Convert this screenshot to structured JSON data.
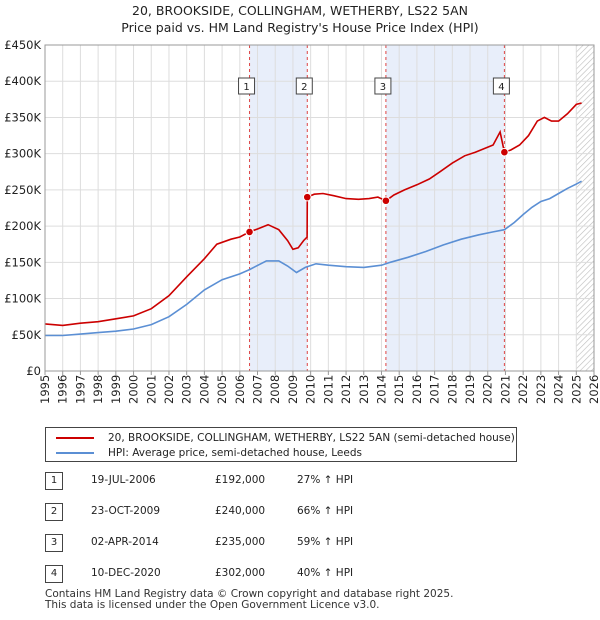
{
  "header": {
    "title": "20, BROOKSIDE, COLLINGHAM, WETHERBY, LS22 5AN",
    "subtitle": "Price paid vs. HM Land Registry's House Price Index (HPI)"
  },
  "chart_data": {
    "type": "line",
    "x_ticks": [
      "1995",
      "1996",
      "1997",
      "1998",
      "1999",
      "2000",
      "2001",
      "2002",
      "2003",
      "2004",
      "2005",
      "2006",
      "2007",
      "2008",
      "2009",
      "2010",
      "2011",
      "2012",
      "2013",
      "2014",
      "2015",
      "2016",
      "2017",
      "2018",
      "2019",
      "2020",
      "2021",
      "2022",
      "2023",
      "2024",
      "2025",
      "2026"
    ],
    "y_ticks": [
      "£0",
      "£50K",
      "£100K",
      "£150K",
      "£200K",
      "£250K",
      "£300K",
      "£350K",
      "£400K",
      "£450K"
    ],
    "xlim": [
      1995,
      2026
    ],
    "ylim": [
      0,
      450000
    ],
    "forecast_from": 2025.0,
    "shaded_ranges": [
      [
        2006.55,
        2009.81
      ],
      [
        2014.25,
        2020.94
      ]
    ],
    "series": [
      {
        "name": "20, BROOKSIDE, COLLINGHAM, WETHERBY, LS22 5AN (semi-detached house)",
        "color": "#cc0000",
        "points": [
          [
            1995.0,
            65000
          ],
          [
            1996.0,
            63000
          ],
          [
            1997.0,
            66000
          ],
          [
            1998.0,
            68000
          ],
          [
            1999.0,
            72000
          ],
          [
            2000.0,
            76000
          ],
          [
            2001.0,
            86000
          ],
          [
            2002.0,
            104000
          ],
          [
            2003.0,
            130000
          ],
          [
            2004.0,
            155000
          ],
          [
            2004.7,
            175000
          ],
          [
            2005.5,
            182000
          ],
          [
            2006.0,
            185000
          ],
          [
            2006.55,
            192000
          ],
          [
            2007.0,
            196000
          ],
          [
            2007.6,
            202000
          ],
          [
            2008.2,
            195000
          ],
          [
            2008.7,
            180000
          ],
          [
            2009.0,
            168000
          ],
          [
            2009.3,
            170000
          ],
          [
            2009.6,
            180000
          ],
          [
            2009.8,
            185000
          ],
          [
            2009.81,
            240000
          ],
          [
            2010.2,
            244000
          ],
          [
            2010.7,
            245000
          ],
          [
            2011.3,
            242000
          ],
          [
            2012.0,
            238000
          ],
          [
            2012.7,
            237000
          ],
          [
            2013.3,
            238000
          ],
          [
            2013.8,
            240000
          ],
          [
            2014.25,
            235000
          ],
          [
            2014.7,
            243000
          ],
          [
            2015.3,
            250000
          ],
          [
            2016.0,
            257000
          ],
          [
            2016.7,
            265000
          ],
          [
            2017.3,
            275000
          ],
          [
            2018.0,
            287000
          ],
          [
            2018.7,
            297000
          ],
          [
            2019.3,
            302000
          ],
          [
            2019.8,
            307000
          ],
          [
            2020.3,
            312000
          ],
          [
            2020.7,
            330000
          ],
          [
            2020.94,
            302000
          ],
          [
            2021.3,
            305000
          ],
          [
            2021.8,
            312000
          ],
          [
            2022.3,
            325000
          ],
          [
            2022.8,
            345000
          ],
          [
            2023.2,
            350000
          ],
          [
            2023.6,
            345000
          ],
          [
            2024.0,
            345000
          ],
          [
            2024.5,
            355000
          ],
          [
            2025.0,
            368000
          ],
          [
            2025.3,
            370000
          ]
        ]
      },
      {
        "name": "HPI: Average price, semi-detached house, Leeds",
        "color": "#5b8fd4",
        "points": [
          [
            1995.0,
            49000
          ],
          [
            1996.0,
            49000
          ],
          [
            1997.0,
            51000
          ],
          [
            1998.0,
            53000
          ],
          [
            1999.0,
            55000
          ],
          [
            2000.0,
            58000
          ],
          [
            2001.0,
            64000
          ],
          [
            2002.0,
            75000
          ],
          [
            2003.0,
            92000
          ],
          [
            2004.0,
            112000
          ],
          [
            2005.0,
            126000
          ],
          [
            2006.0,
            134000
          ],
          [
            2006.55,
            140000
          ],
          [
            2007.5,
            152000
          ],
          [
            2008.2,
            152000
          ],
          [
            2008.7,
            145000
          ],
          [
            2009.2,
            136000
          ],
          [
            2009.7,
            143000
          ],
          [
            2010.3,
            148000
          ],
          [
            2011.0,
            146000
          ],
          [
            2012.0,
            144000
          ],
          [
            2013.0,
            143000
          ],
          [
            2014.0,
            146000
          ],
          [
            2014.5,
            150000
          ],
          [
            2015.5,
            157000
          ],
          [
            2016.5,
            165000
          ],
          [
            2017.5,
            174000
          ],
          [
            2018.5,
            182000
          ],
          [
            2019.5,
            188000
          ],
          [
            2020.3,
            192000
          ],
          [
            2020.94,
            195000
          ],
          [
            2021.5,
            205000
          ],
          [
            2022.0,
            216000
          ],
          [
            2022.5,
            226000
          ],
          [
            2023.0,
            234000
          ],
          [
            2023.5,
            238000
          ],
          [
            2024.0,
            245000
          ],
          [
            2024.5,
            252000
          ],
          [
            2025.0,
            258000
          ],
          [
            2025.3,
            262000
          ]
        ]
      }
    ],
    "sale_markers": [
      {
        "label": "1",
        "x": 2006.55,
        "y": 192000
      },
      {
        "label": "2",
        "x": 2009.81,
        "y": 240000
      },
      {
        "label": "3",
        "x": 2014.25,
        "y": 235000
      },
      {
        "label": "4",
        "x": 2020.94,
        "y": 302000
      }
    ]
  },
  "legend": {
    "items": [
      {
        "label": "20, BROOKSIDE, COLLINGHAM, WETHERBY, LS22 5AN (semi-detached house)",
        "color": "#cc0000"
      },
      {
        "label": "HPI: Average price, semi-detached house, Leeds",
        "color": "#5b8fd4"
      }
    ]
  },
  "sales": [
    {
      "num": "1",
      "date": "19-JUL-2006",
      "price": "£192,000",
      "hpi": "27% ↑ HPI"
    },
    {
      "num": "2",
      "date": "23-OCT-2009",
      "price": "£240,000",
      "hpi": "66% ↑ HPI"
    },
    {
      "num": "3",
      "date": "02-APR-2014",
      "price": "£235,000",
      "hpi": "59% ↑ HPI"
    },
    {
      "num": "4",
      "date": "10-DEC-2020",
      "price": "£302,000",
      "hpi": "40% ↑ HPI"
    }
  ],
  "footer": {
    "line1": "Contains HM Land Registry data © Crown copyright and database right 2025.",
    "line2": "This data is licensed under the Open Government Licence v3.0."
  }
}
